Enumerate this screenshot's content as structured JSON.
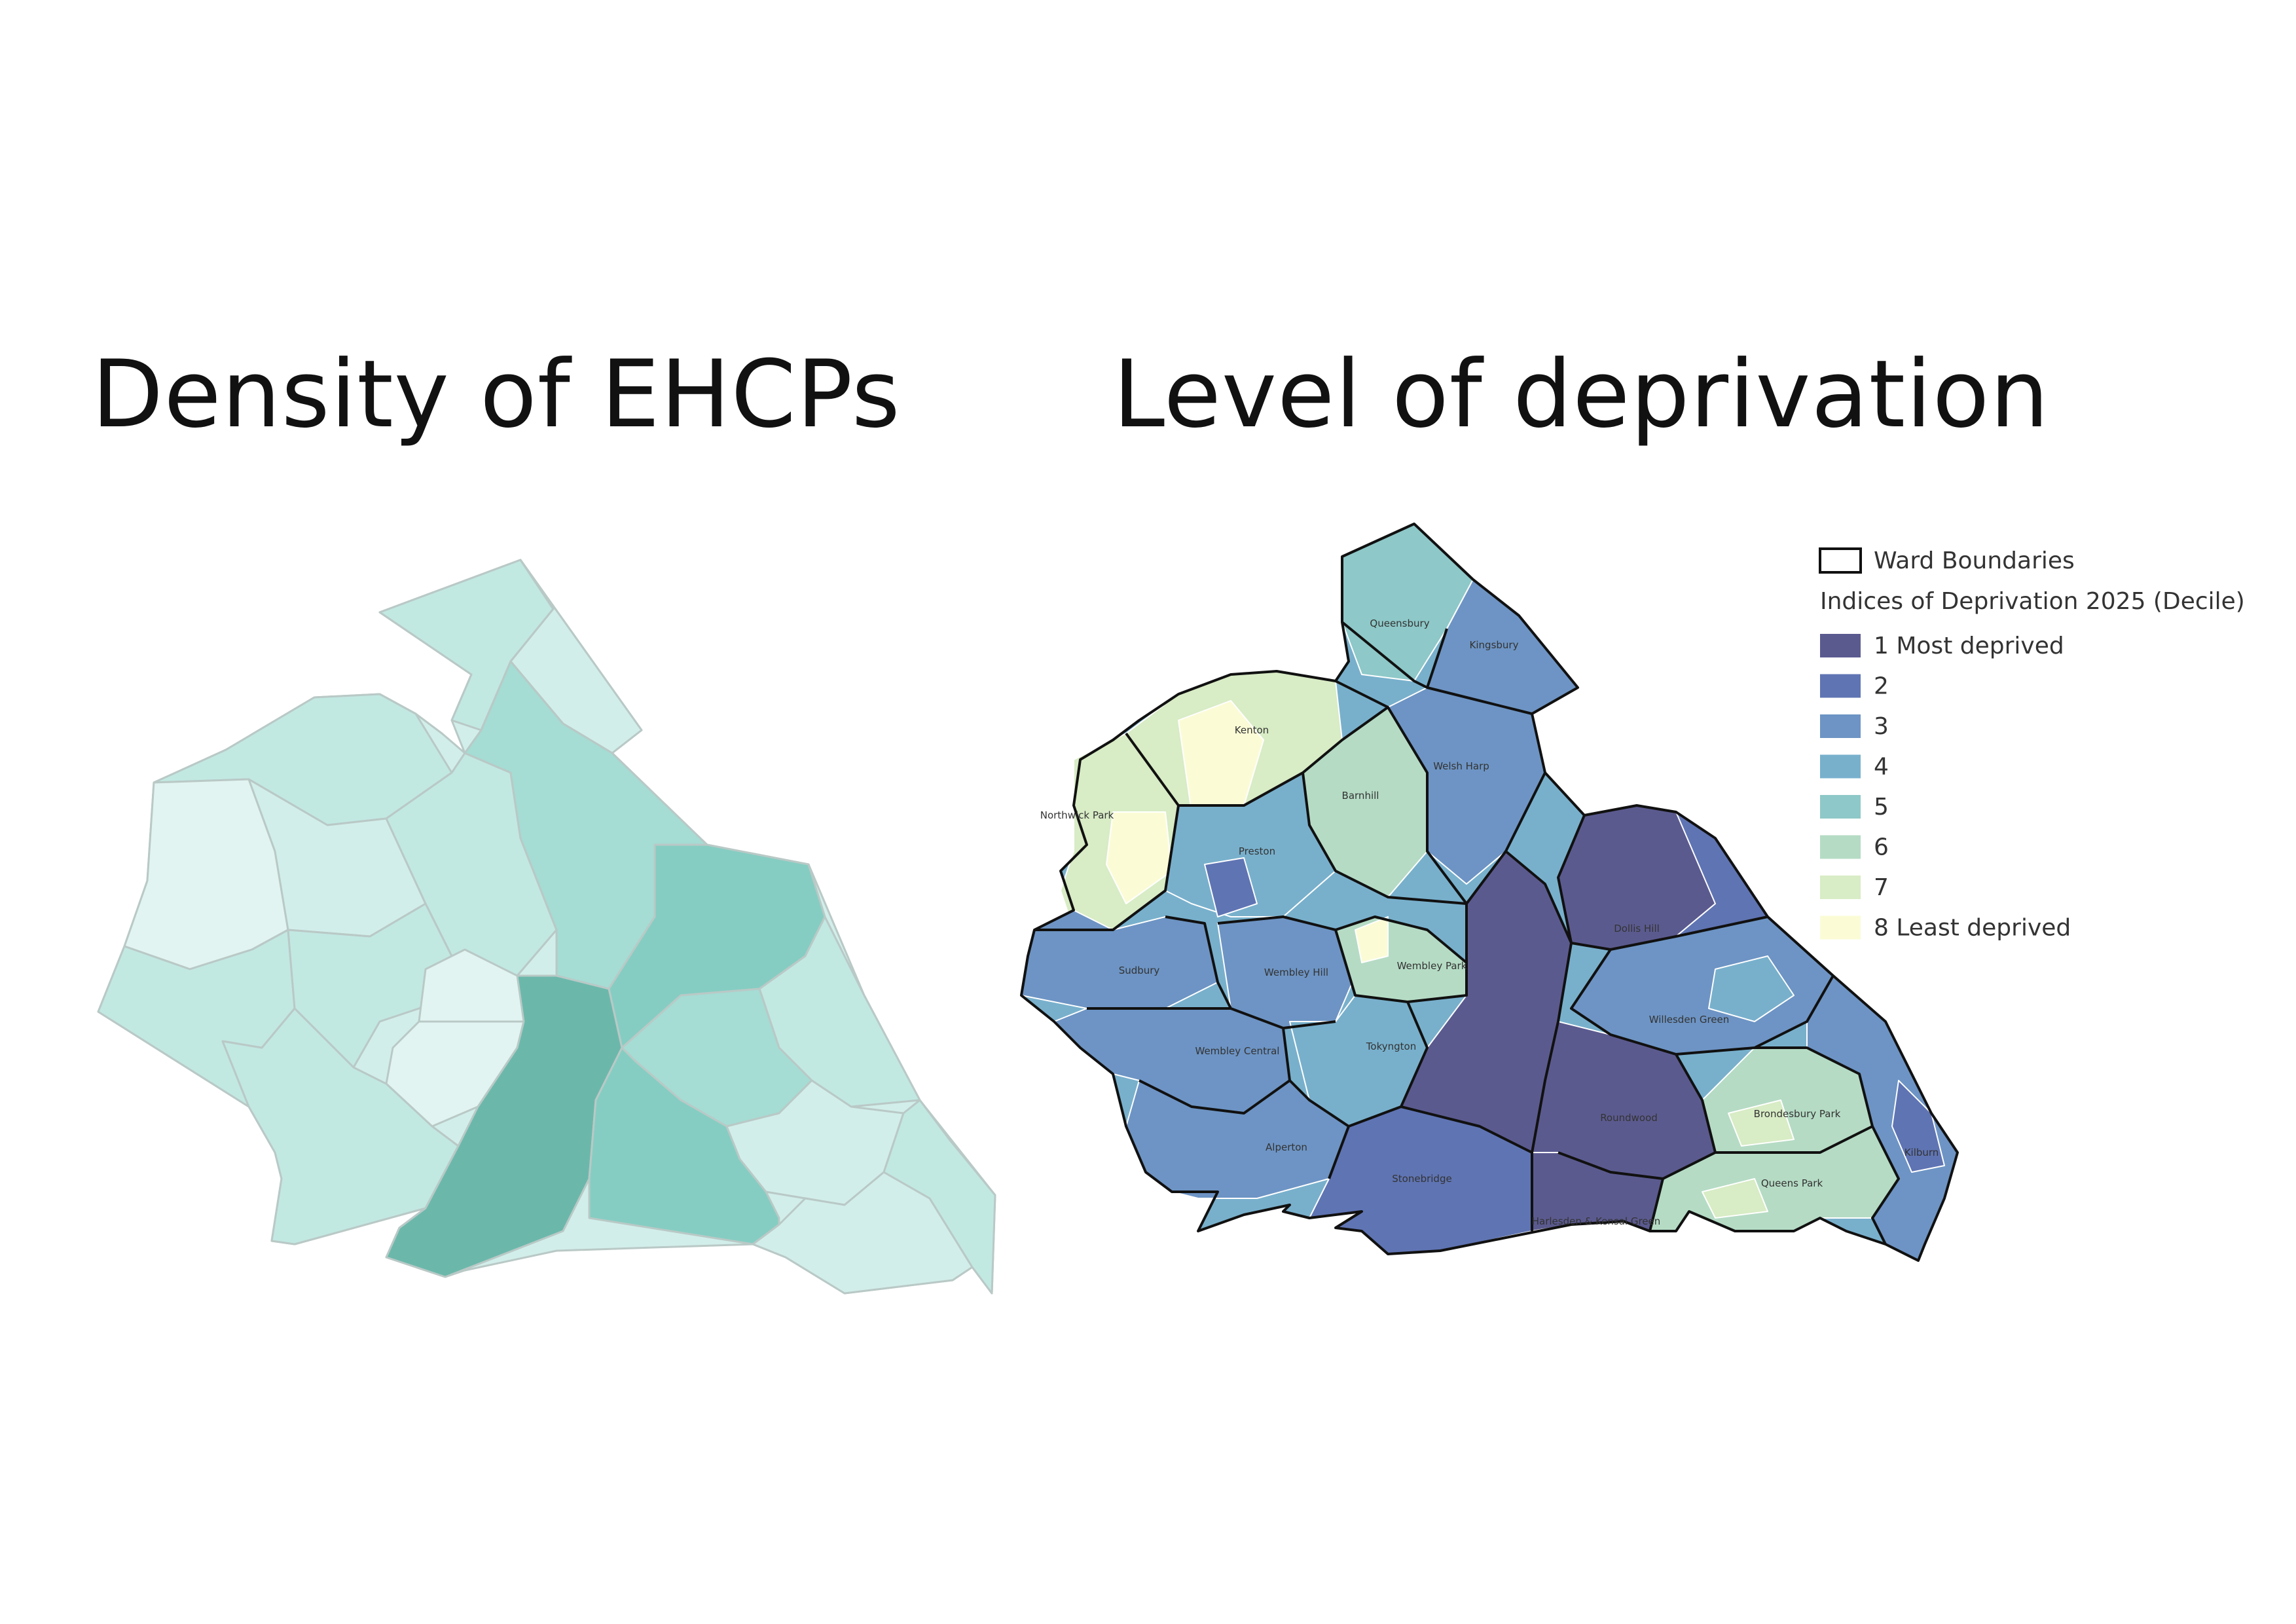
{
  "titles": {
    "left": "Density of EHCPs",
    "right": "Level of deprivation"
  },
  "legend": {
    "boundary_label": "Ward Boundaries",
    "heading": "Indices of Deprivation 2025 (Decile)",
    "items": [
      {
        "label": "1 Most deprived",
        "color": "#5b5a8f"
      },
      {
        "label": "2",
        "color": "#5f74b3"
      },
      {
        "label": "3",
        "color": "#6d94c4"
      },
      {
        "label": "4",
        "color": "#78b0cc"
      },
      {
        "label": "5",
        "color": "#8ec8c8"
      },
      {
        "label": "6",
        "color": "#b5dbc4"
      },
      {
        "label": "7",
        "color": "#d8ecc5"
      },
      {
        "label": "8 Least deprived",
        "color": "#fbfcd6"
      }
    ]
  },
  "ehcp_palette": [
    "#e2f4f1",
    "#d2eeea",
    "#c2e8e2",
    "#a5dcd4",
    "#85cdc2",
    "#6bb8ab"
  ],
  "wards": [
    "Queensbury",
    "Kingsbury",
    "Kenton",
    "Northwick Park",
    "Barnhill",
    "Welsh Harp",
    "Preston",
    "Dollis Hill",
    "Sudbury",
    "Wembley Hill",
    "Wembley Park",
    "Willesden Green",
    "Wembley Central",
    "Tokyngton",
    "Roundwood",
    "Brondesbury Park",
    "Alperton",
    "Kilburn",
    "Stonebridge",
    "Queens Park",
    "Harlesden & Kensal Green"
  ]
}
